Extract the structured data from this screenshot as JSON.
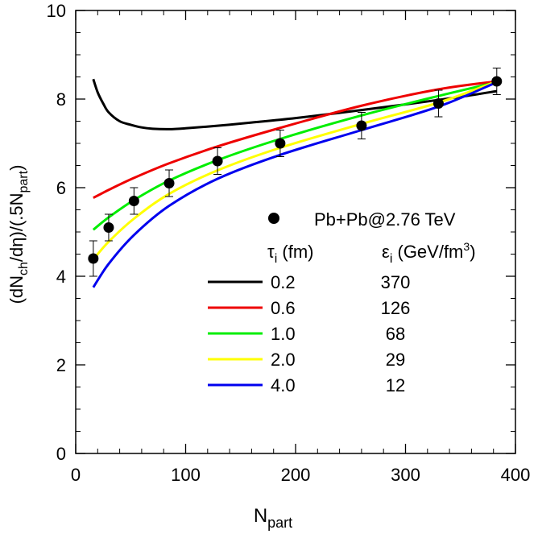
{
  "chart_data": {
    "type": "line",
    "xlabel_main": "N",
    "xlabel_sub": "part",
    "ylabel_parts": [
      "(dN",
      "ch",
      "/dη)/(.5N",
      "part",
      ")"
    ],
    "xlim": [
      0,
      400
    ],
    "ylim": [
      0,
      10
    ],
    "xticks": [
      0,
      100,
      200,
      300,
      400
    ],
    "yticks": [
      0,
      2,
      4,
      6,
      8,
      10
    ],
    "grid": false,
    "points": {
      "label": "Pb+Pb@2.76 TeV",
      "x": [
        16,
        30,
        53,
        85,
        129,
        186,
        260,
        330,
        383
      ],
      "y": [
        4.4,
        5.1,
        5.7,
        6.1,
        6.6,
        7.0,
        7.4,
        7.9,
        8.4
      ],
      "err": [
        0.4,
        0.3,
        0.3,
        0.3,
        0.3,
        0.3,
        0.3,
        0.3,
        0.3
      ]
    },
    "legend_headers": {
      "tau_symbol": "τ",
      "tau_sub": "i",
      "tau_unit": " (fm)",
      "eps_symbol": "ε",
      "eps_sub": "i",
      "eps_unit": " (GeV/fm",
      "eps_sup": "3",
      "eps_close": ")"
    },
    "series": [
      {
        "tau": "0.2",
        "eps": "370",
        "color": "#000000",
        "x": [
          16,
          20,
          25,
          30,
          40,
          50,
          60,
          70,
          85,
          100,
          130,
          160,
          200,
          250,
          300,
          350,
          383
        ],
        "y": [
          8.45,
          8.15,
          7.9,
          7.7,
          7.5,
          7.42,
          7.36,
          7.33,
          7.32,
          7.34,
          7.4,
          7.47,
          7.57,
          7.72,
          7.88,
          8.05,
          8.18
        ]
      },
      {
        "tau": "0.6",
        "eps": "126",
        "color": "#ee0000",
        "x": [
          16,
          30,
          53,
          85,
          129,
          186,
          260,
          330,
          383
        ],
        "y": [
          5.77,
          5.95,
          6.22,
          6.55,
          6.93,
          7.35,
          7.85,
          8.22,
          8.4
        ]
      },
      {
        "tau": "1.0",
        "eps": "68",
        "color": "#00ee00",
        "x": [
          16,
          30,
          53,
          85,
          129,
          186,
          260,
          330,
          383
        ],
        "y": [
          5.05,
          5.33,
          5.72,
          6.16,
          6.62,
          7.1,
          7.63,
          8.07,
          8.38
        ]
      },
      {
        "tau": "2.0",
        "eps": "29",
        "color": "#ffff00",
        "x": [
          16,
          30,
          53,
          85,
          129,
          186,
          260,
          330,
          383
        ],
        "y": [
          4.38,
          4.78,
          5.3,
          5.86,
          6.39,
          6.9,
          7.44,
          7.92,
          8.4
        ]
      },
      {
        "tau": "4.0",
        "eps": "12",
        "color": "#0000ee",
        "x": [
          16,
          30,
          53,
          85,
          129,
          186,
          260,
          330,
          383
        ],
        "y": [
          3.75,
          4.28,
          4.93,
          5.59,
          6.2,
          6.74,
          7.3,
          7.83,
          8.38
        ]
      }
    ]
  }
}
